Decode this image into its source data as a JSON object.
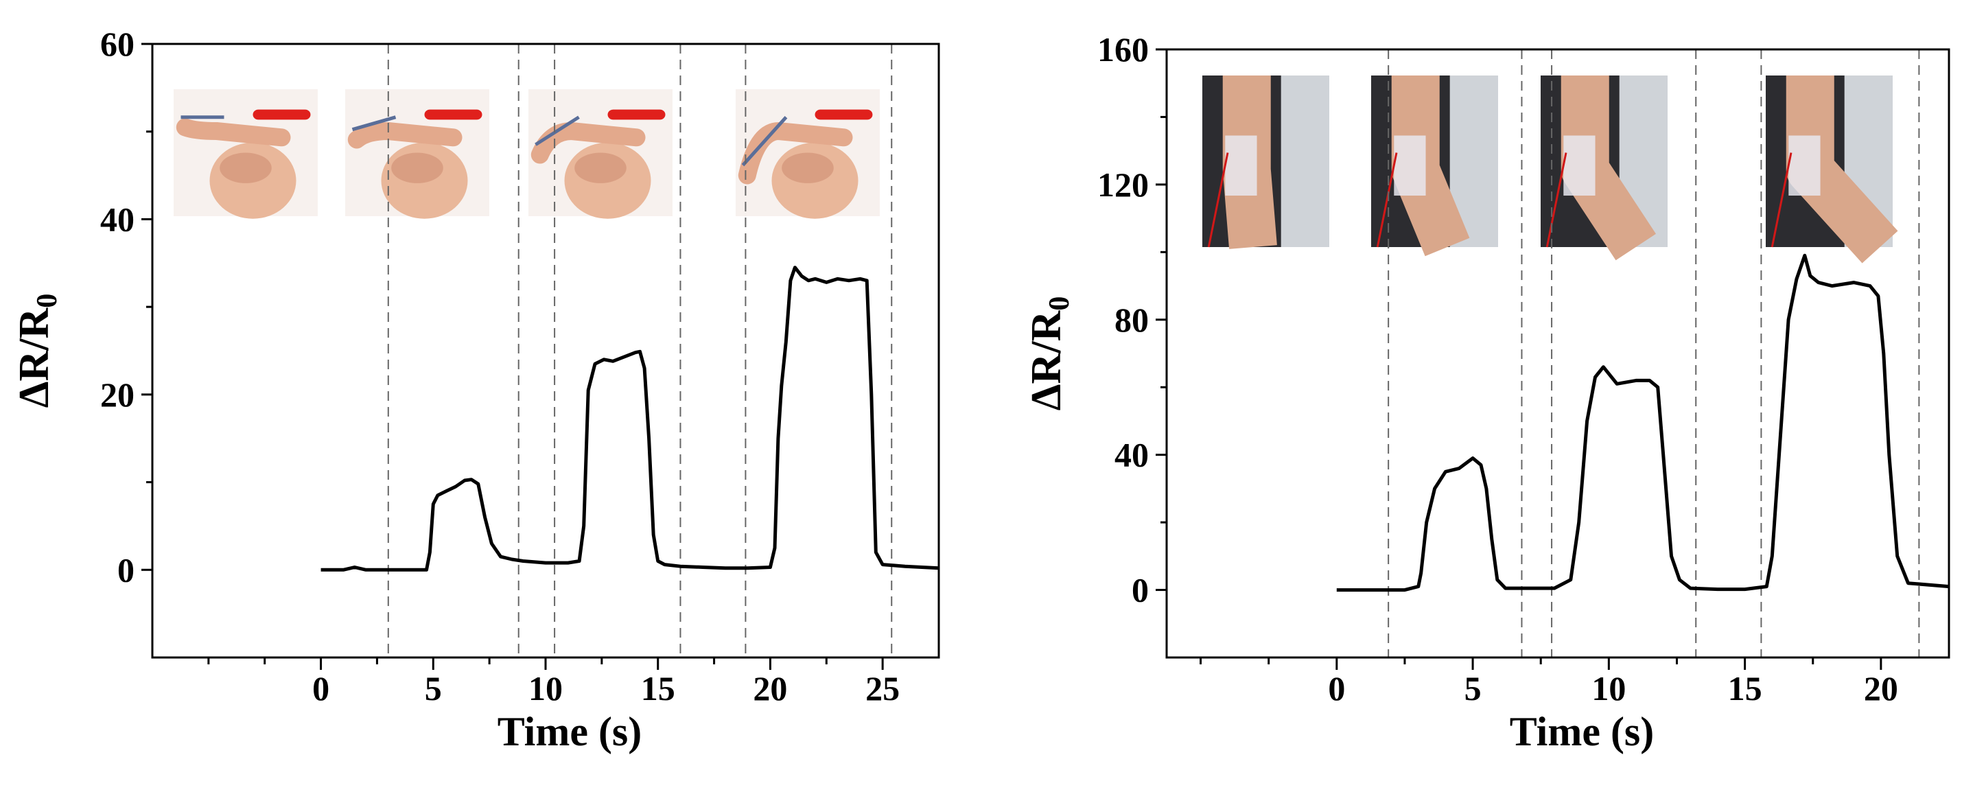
{
  "chart_data": [
    {
      "type": "line",
      "xlabel": "Time (s)",
      "ylabel_main": "ΔR/R",
      "ylabel_sub": "0",
      "xlim": [
        -7.5,
        27.5
      ],
      "ylim": [
        -10,
        60
      ],
      "xticks": [
        0,
        5,
        10,
        15,
        20,
        25
      ],
      "xminor": [
        -5,
        -2.5,
        2.5,
        7.5,
        12.5,
        17.5,
        22.5
      ],
      "yticks": [
        0,
        20,
        40,
        60
      ],
      "dividers": [
        3.0,
        8.8,
        10.4,
        16.0,
        18.9,
        25.4
      ],
      "series": [
        {
          "x": [
            0,
            1.0,
            1.5,
            2.0,
            3.0,
            4.0,
            4.7,
            4.85,
            5.0,
            5.2,
            5.6,
            6.0,
            6.4,
            6.7,
            7.0,
            7.3,
            7.6,
            8.0,
            8.5,
            9.0,
            10.0,
            11.0,
            11.5,
            11.7,
            11.9,
            12.2,
            12.6,
            13.0,
            13.5,
            14.0,
            14.2,
            14.4,
            14.6,
            14.8,
            15.0,
            15.3,
            16.0,
            17.0,
            18.0,
            19.0,
            20.0,
            20.2,
            20.35,
            20.5,
            20.7,
            20.9,
            21.1,
            21.4,
            21.7,
            22.0,
            22.5,
            23.0,
            23.5,
            24.0,
            24.3,
            24.5,
            24.7,
            25.0,
            25.5,
            26.0,
            27.5
          ],
          "y": [
            0,
            0,
            0.3,
            0,
            0,
            0,
            0,
            2,
            7.5,
            8.5,
            9.0,
            9.5,
            10.2,
            10.3,
            9.8,
            6.0,
            3.0,
            1.5,
            1.2,
            1.0,
            0.8,
            0.8,
            1.0,
            5.0,
            20.5,
            23.5,
            24.0,
            23.8,
            24.3,
            24.8,
            24.9,
            23.0,
            15.0,
            4.0,
            1.0,
            0.6,
            0.4,
            0.3,
            0.2,
            0.2,
            0.3,
            2.5,
            15.0,
            21.0,
            26.0,
            33.0,
            34.5,
            33.5,
            33.0,
            33.2,
            32.8,
            33.2,
            33.0,
            33.2,
            33.0,
            20.0,
            2.0,
            0.6,
            0.5,
            0.4,
            0.2
          ]
        }
      ],
      "insets": [
        {
          "label": "finger-straight"
        },
        {
          "label": "finger-bend-slight"
        },
        {
          "label": "finger-bend-medium"
        },
        {
          "label": "finger-bend-large"
        }
      ]
    },
    {
      "type": "line",
      "xlabel": "Time (s)",
      "ylabel_main": "ΔR/R",
      "ylabel_sub": "0",
      "xlim": [
        -6.25,
        22.5
      ],
      "ylim": [
        -20,
        160
      ],
      "xticks": [
        0,
        5,
        10,
        15,
        20
      ],
      "xminor": [
        -5,
        -2.5,
        2.5,
        7.5,
        12.5,
        17.5
      ],
      "yticks": [
        0,
        40,
        80,
        120,
        160
      ],
      "dividers": [
        1.9,
        6.8,
        7.9,
        13.2,
        15.6,
        21.4
      ],
      "series": [
        {
          "x": [
            0,
            2.5,
            3.0,
            3.1,
            3.3,
            3.6,
            4.0,
            4.5,
            5.0,
            5.3,
            5.5,
            5.7,
            5.9,
            6.2,
            7.0,
            8.0,
            8.6,
            8.9,
            9.2,
            9.5,
            9.8,
            10.3,
            11.0,
            11.5,
            11.8,
            12.0,
            12.3,
            12.6,
            13.0,
            14.0,
            15.0,
            15.8,
            16.0,
            16.3,
            16.6,
            16.9,
            17.2,
            17.4,
            17.7,
            18.2,
            19.0,
            19.6,
            19.9,
            20.1,
            20.3,
            20.6,
            21.0,
            22.5
          ],
          "y": [
            0,
            0,
            1.0,
            5.0,
            20.0,
            30.0,
            35.0,
            36.0,
            39.0,
            37.0,
            30.0,
            15.0,
            3.0,
            0.5,
            0.5,
            0.5,
            3.0,
            20.0,
            50.0,
            63.0,
            66.0,
            61.0,
            62.0,
            62.0,
            60.0,
            40.0,
            10.0,
            3.0,
            0.5,
            0.2,
            0.2,
            1.0,
            10.0,
            45.0,
            80.0,
            92.0,
            99.0,
            93.0,
            91.0,
            90.0,
            91.0,
            90.0,
            87.0,
            70.0,
            40.0,
            10.0,
            2.0,
            1.0
          ]
        }
      ],
      "insets": [
        {
          "label": "elbow-straight"
        },
        {
          "label": "elbow-bend-slight"
        },
        {
          "label": "elbow-bend-medium"
        },
        {
          "label": "elbow-bend-large"
        }
      ]
    }
  ]
}
